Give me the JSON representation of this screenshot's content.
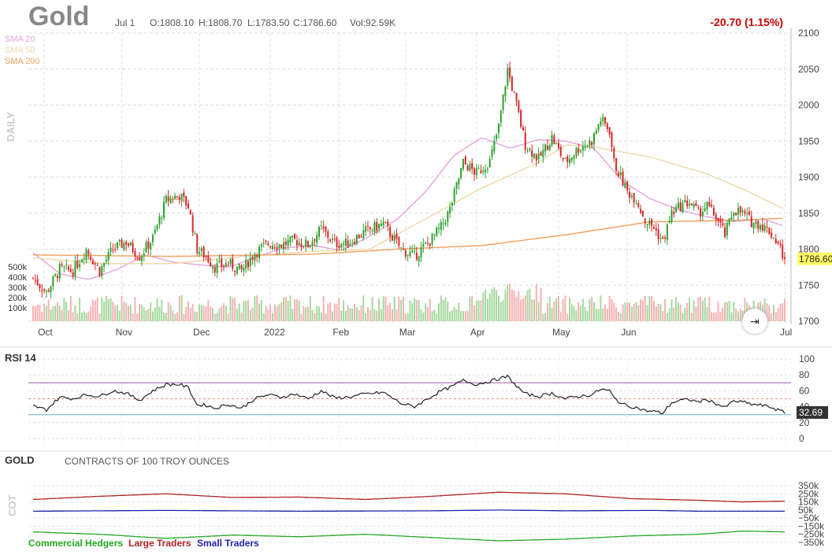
{
  "header": {
    "title": "Gold",
    "date": "Jul 1",
    "open": "O:1808.10",
    "high": "H:1808.70",
    "low": "L:1783.50",
    "close": "C:1786.60",
    "volume": "Vol:92.59K",
    "change": "-20.70 (1.15%)",
    "side_label": "DAILY",
    "last_price": "1786.60"
  },
  "legend": {
    "sma20": "SMA 20",
    "sma50": "SMA 50",
    "sma200": "SMA 200"
  },
  "volume_labels": [
    "500k",
    "400k",
    "300k",
    "200k",
    "100k"
  ],
  "colors": {
    "up": "#2ca02c",
    "down": "#d62728",
    "sma20": "#e5a3d9",
    "sma50": "#eed8a8",
    "sma200": "#f0a060",
    "rsi": "#222",
    "rsi_upper": "#9d5fb3",
    "rsi_lower": "#5ab2c8",
    "large": "#b22222",
    "small": "#2222aa",
    "commercial": "#22aa22",
    "price_badge": "#ffff66"
  },
  "chart_data": [
    {
      "type": "candlestick",
      "title": "Gold",
      "x_labels": [
        "Oct",
        "Nov",
        "Dec",
        "2022",
        "Feb",
        "Mar",
        "Apr",
        "May",
        "Jun",
        "Jul"
      ],
      "y_ticks": [
        1700,
        1750,
        1800,
        1850,
        1900,
        1950,
        2000,
        2050,
        2100
      ],
      "ylim": [
        1700,
        2100
      ],
      "grid": true,
      "series": [
        {
          "name": "SMA 20",
          "close_anchors": [
            [
              0,
              1795
            ],
            [
              10,
              1765
            ],
            [
              20,
              1758
            ],
            [
              30,
              1772
            ],
            [
              40,
              1792
            ],
            [
              50,
              1782
            ],
            [
              60,
              1778
            ],
            [
              70,
              1775
            ],
            [
              80,
              1790
            ],
            [
              90,
              1802
            ],
            [
              100,
              1805
            ],
            [
              110,
              1798
            ],
            [
              120,
              1818
            ],
            [
              130,
              1842
            ],
            [
              140,
              1880
            ],
            [
              150,
              1930
            ],
            [
              160,
              1955
            ],
            [
              170,
              1940
            ],
            [
              180,
              1952
            ],
            [
              190,
              1950
            ],
            [
              200,
              1940
            ],
            [
              210,
              1895
            ],
            [
              220,
              1870
            ],
            [
              230,
              1855
            ],
            [
              240,
              1845
            ],
            [
              250,
              1838
            ],
            [
              260,
              1842
            ],
            [
              268,
              1832
            ]
          ]
        },
        {
          "name": "SMA 50",
          "close_anchors": [
            [
              0,
              1788
            ],
            [
              25,
              1780
            ],
            [
              50,
              1780
            ],
            [
              75,
              1790
            ],
            [
              100,
              1797
            ],
            [
              120,
              1800
            ],
            [
              140,
              1842
            ],
            [
              160,
              1885
            ],
            [
              180,
              1920
            ],
            [
              190,
              1945
            ],
            [
              200,
              1942
            ],
            [
              220,
              1928
            ],
            [
              240,
              1905
            ],
            [
              255,
              1880
            ],
            [
              268,
              1855
            ]
          ]
        },
        {
          "name": "SMA 200",
          "close_anchors": [
            [
              0,
              1792
            ],
            [
              50,
              1790
            ],
            [
              100,
              1793
            ],
            [
              130,
              1800
            ],
            [
              160,
              1805
            ],
            [
              190,
              1820
            ],
            [
              220,
              1838
            ],
            [
              250,
              1840
            ],
            [
              268,
              1843
            ]
          ]
        }
      ],
      "ohlc_anchors": [
        [
          0,
          1760
        ],
        [
          6,
          1740
        ],
        [
          12,
          1772
        ],
        [
          18,
          1770
        ],
        [
          24,
          1800
        ],
        [
          30,
          1770
        ],
        [
          36,
          1800
        ],
        [
          42,
          1810
        ],
        [
          48,
          1790
        ],
        [
          54,
          1815
        ],
        [
          60,
          1868
        ],
        [
          66,
          1875
        ],
        [
          70,
          1860
        ],
        [
          74,
          1800
        ],
        [
          78,
          1790
        ],
        [
          82,
          1775
        ],
        [
          88,
          1780
        ],
        [
          94,
          1770
        ],
        [
          100,
          1795
        ],
        [
          106,
          1808
        ],
        [
          112,
          1806
        ],
        [
          118,
          1812
        ],
        [
          124,
          1806
        ],
        [
          130,
          1828
        ],
        [
          136,
          1808
        ],
        [
          142,
          1808
        ],
        [
          150,
          1825
        ],
        [
          158,
          1835
        ],
        [
          166,
          1800
        ],
        [
          172,
          1790
        ],
        [
          178,
          1808
        ],
        [
          184,
          1830
        ],
        [
          188,
          1855
        ],
        [
          194,
          1920
        ],
        [
          200,
          1905
        ],
        [
          206,
          1922
        ],
        [
          210,
          1970
        ],
        [
          214,
          2050
        ],
        [
          218,
          2000
        ],
        [
          222,
          1945
        ],
        [
          228,
          1925
        ],
        [
          234,
          1955
        ],
        [
          240,
          1920
        ],
        [
          246,
          1940
        ],
        [
          252,
          1950
        ],
        [
          256,
          1980
        ],
        [
          260,
          1965
        ],
        [
          262,
          1920
        ],
        [
          265,
          1900
        ],
        [
          268,
          1880
        ],
        [
          272,
          1870
        ],
        [
          276,
          1840
        ],
        [
          280,
          1830
        ],
        [
          284,
          1810
        ],
        [
          288,
          1850
        ],
        [
          292,
          1860
        ],
        [
          296,
          1865
        ],
        [
          300,
          1850
        ],
        [
          304,
          1860
        ],
        [
          308,
          1845
        ],
        [
          312,
          1820
        ],
        [
          316,
          1855
        ],
        [
          320,
          1850
        ],
        [
          324,
          1838
        ],
        [
          328,
          1835
        ],
        [
          332,
          1825
        ],
        [
          336,
          1808
        ],
        [
          339,
          1786
        ]
      ],
      "volume_max": "600k",
      "last_close": 1786.6
    },
    {
      "type": "line",
      "title": "RSI 14",
      "y_ticks": [
        0,
        20,
        40,
        60,
        80,
        100
      ],
      "ylim": [
        0,
        100
      ],
      "overbought": 70,
      "oversold": 30,
      "last_value": "32.69",
      "anchors": [
        [
          0,
          41
        ],
        [
          6,
          36
        ],
        [
          12,
          52
        ],
        [
          18,
          50
        ],
        [
          24,
          55
        ],
        [
          30,
          53
        ],
        [
          36,
          60
        ],
        [
          42,
          57
        ],
        [
          48,
          48
        ],
        [
          54,
          60
        ],
        [
          60,
          68
        ],
        [
          66,
          68
        ],
        [
          70,
          64
        ],
        [
          74,
          42
        ],
        [
          78,
          42
        ],
        [
          82,
          38
        ],
        [
          88,
          43
        ],
        [
          94,
          38
        ],
        [
          100,
          50
        ],
        [
          106,
          55
        ],
        [
          112,
          52
        ],
        [
          118,
          56
        ],
        [
          124,
          50
        ],
        [
          130,
          60
        ],
        [
          136,
          51
        ],
        [
          142,
          52
        ],
        [
          150,
          56
        ],
        [
          158,
          58
        ],
        [
          166,
          44
        ],
        [
          172,
          40
        ],
        [
          178,
          50
        ],
        [
          184,
          60
        ],
        [
          188,
          64
        ],
        [
          194,
          73
        ],
        [
          200,
          68
        ],
        [
          206,
          72
        ],
        [
          210,
          75
        ],
        [
          214,
          78
        ],
        [
          218,
          66
        ],
        [
          222,
          56
        ],
        [
          228,
          53
        ],
        [
          234,
          57
        ],
        [
          240,
          50
        ],
        [
          246,
          53
        ],
        [
          252,
          55
        ],
        [
          256,
          62
        ],
        [
          260,
          60
        ],
        [
          262,
          51
        ],
        [
          265,
          45
        ],
        [
          268,
          41
        ],
        [
          272,
          39
        ],
        [
          276,
          35
        ],
        [
          280,
          34
        ],
        [
          284,
          32
        ],
        [
          288,
          45
        ],
        [
          292,
          48
        ],
        [
          296,
          49
        ],
        [
          300,
          46
        ],
        [
          304,
          49
        ],
        [
          308,
          44
        ],
        [
          312,
          39
        ],
        [
          316,
          47
        ],
        [
          320,
          46
        ],
        [
          324,
          43
        ],
        [
          328,
          42
        ],
        [
          332,
          40
        ],
        [
          336,
          36
        ],
        [
          339,
          32.69
        ]
      ]
    },
    {
      "type": "line",
      "title": "GOLD",
      "subtitle": "CONTRACTS OF 100 TROY OUNCES",
      "side_label": "COT",
      "y_ticks": [
        "350k",
        "250k",
        "150k",
        "50k",
        "−50k",
        "−150k",
        "−250k",
        "−350k"
      ],
      "ylim": [
        -350,
        350
      ],
      "series": [
        {
          "name": "Commercial Hedgers",
          "anchors": [
            [
              0,
              -220
            ],
            [
              30,
              -250
            ],
            [
              60,
              -300
            ],
            [
              90,
              -260
            ],
            [
              120,
              -280
            ],
            [
              150,
              -250
            ],
            [
              180,
              -290
            ],
            [
              210,
              -330
            ],
            [
              240,
              -310
            ],
            [
              270,
              -270
            ],
            [
              300,
              -250
            ],
            [
              320,
              -210
            ],
            [
              339,
              -220
            ]
          ]
        },
        {
          "name": "Large Traders",
          "anchors": [
            [
              0,
              180
            ],
            [
              30,
              220
            ],
            [
              60,
              250
            ],
            [
              90,
              205
            ],
            [
              120,
              210
            ],
            [
              150,
              180
            ],
            [
              180,
              220
            ],
            [
              210,
              270
            ],
            [
              240,
              250
            ],
            [
              270,
              190
            ],
            [
              300,
              170
            ],
            [
              320,
              150
            ],
            [
              339,
              160
            ]
          ]
        },
        {
          "name": "Small Traders",
          "anchors": [
            [
              0,
              35
            ],
            [
              60,
              45
            ],
            [
              120,
              35
            ],
            [
              180,
              40
            ],
            [
              210,
              50
            ],
            [
              240,
              40
            ],
            [
              280,
              45
            ],
            [
              300,
              35
            ],
            [
              339,
              35
            ]
          ]
        }
      ]
    }
  ]
}
